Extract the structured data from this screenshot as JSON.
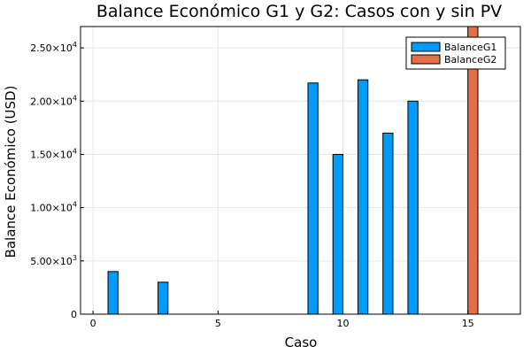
{
  "chart_data": {
    "type": "bar",
    "title": "Balance Económico G1 y G2: Casos con y sin PV",
    "xlabel": "Caso",
    "ylabel": "Balance Económico (USD)",
    "xlim": [
      -0.5,
      17.1
    ],
    "ylim": [
      0,
      27000
    ],
    "grid": true,
    "legend_position": "top-right",
    "x": [
      1,
      2,
      3,
      4,
      5,
      6,
      7,
      8,
      9,
      10,
      11,
      12,
      13,
      14,
      15,
      16
    ],
    "series": [
      {
        "name": "BalanceG1",
        "color": "#009af9",
        "values": [
          4000,
          0,
          3000,
          0,
          0,
          0,
          0,
          0,
          21700,
          15000,
          22000,
          17000,
          20000,
          0,
          0,
          0
        ]
      },
      {
        "name": "BalanceG2",
        "color": "#e26f46",
        "values": [
          0,
          0,
          0,
          0,
          0,
          0,
          0,
          0,
          0,
          0,
          0,
          0,
          0,
          0,
          27000,
          0
        ]
      }
    ],
    "x_ticks": [
      {
        "value": 0,
        "label": "0"
      },
      {
        "value": 5,
        "label": "5"
      },
      {
        "value": 10,
        "label": "10"
      },
      {
        "value": 15,
        "label": "15"
      }
    ],
    "y_ticks": [
      {
        "value": 0,
        "label": "0",
        "exp": ""
      },
      {
        "value": 5000,
        "label": "5.00×10",
        "exp": "3"
      },
      {
        "value": 10000,
        "label": "1.00×10",
        "exp": "4"
      },
      {
        "value": 15000,
        "label": "1.50×10",
        "exp": "4"
      },
      {
        "value": 20000,
        "label": "2.00×10",
        "exp": "4"
      },
      {
        "value": 25000,
        "label": "2.50×10",
        "exp": "4"
      }
    ]
  }
}
